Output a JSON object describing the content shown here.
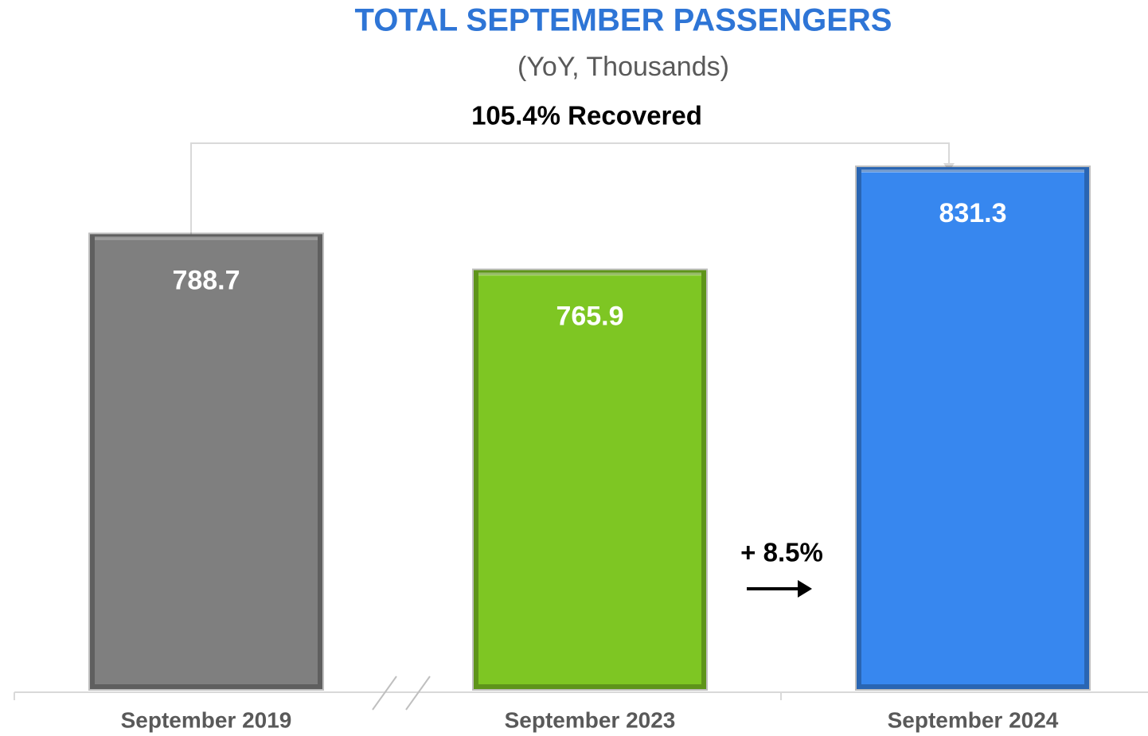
{
  "chart_data": {
    "type": "bar",
    "title": "TOTAL SEPTEMBER PASSENGERS",
    "subtitle": "(YoY, Thousands)",
    "categories": [
      "September 2019",
      "September 2023",
      "September 2024"
    ],
    "values": [
      788.7,
      765.9,
      831.3
    ],
    "colors": [
      "#7f7f7f",
      "#7ec623",
      "#3787ef"
    ],
    "ylim": [
      500,
      850
    ],
    "annotations": [
      "105.4% Recovered",
      "+ 8.5%"
    ]
  }
}
